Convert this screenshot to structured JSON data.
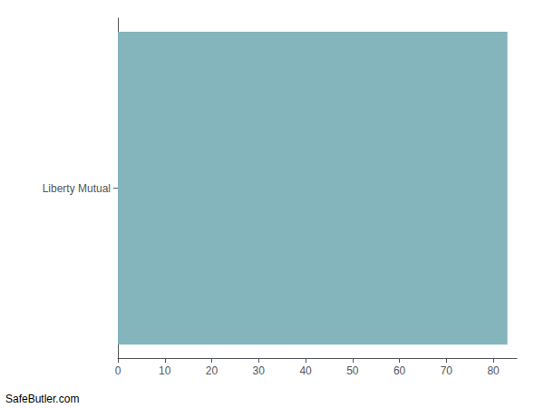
{
  "chart_data": {
    "type": "bar",
    "orientation": "horizontal",
    "categories": [
      "Liberty Mutual"
    ],
    "values": [
      83
    ],
    "color": "#84B4BC",
    "xlim": [
      0,
      85
    ],
    "xticks": [
      0,
      10,
      20,
      30,
      40,
      50,
      60,
      70,
      80
    ],
    "grid": false,
    "annotations": [
      "SafeButler.com"
    ]
  }
}
